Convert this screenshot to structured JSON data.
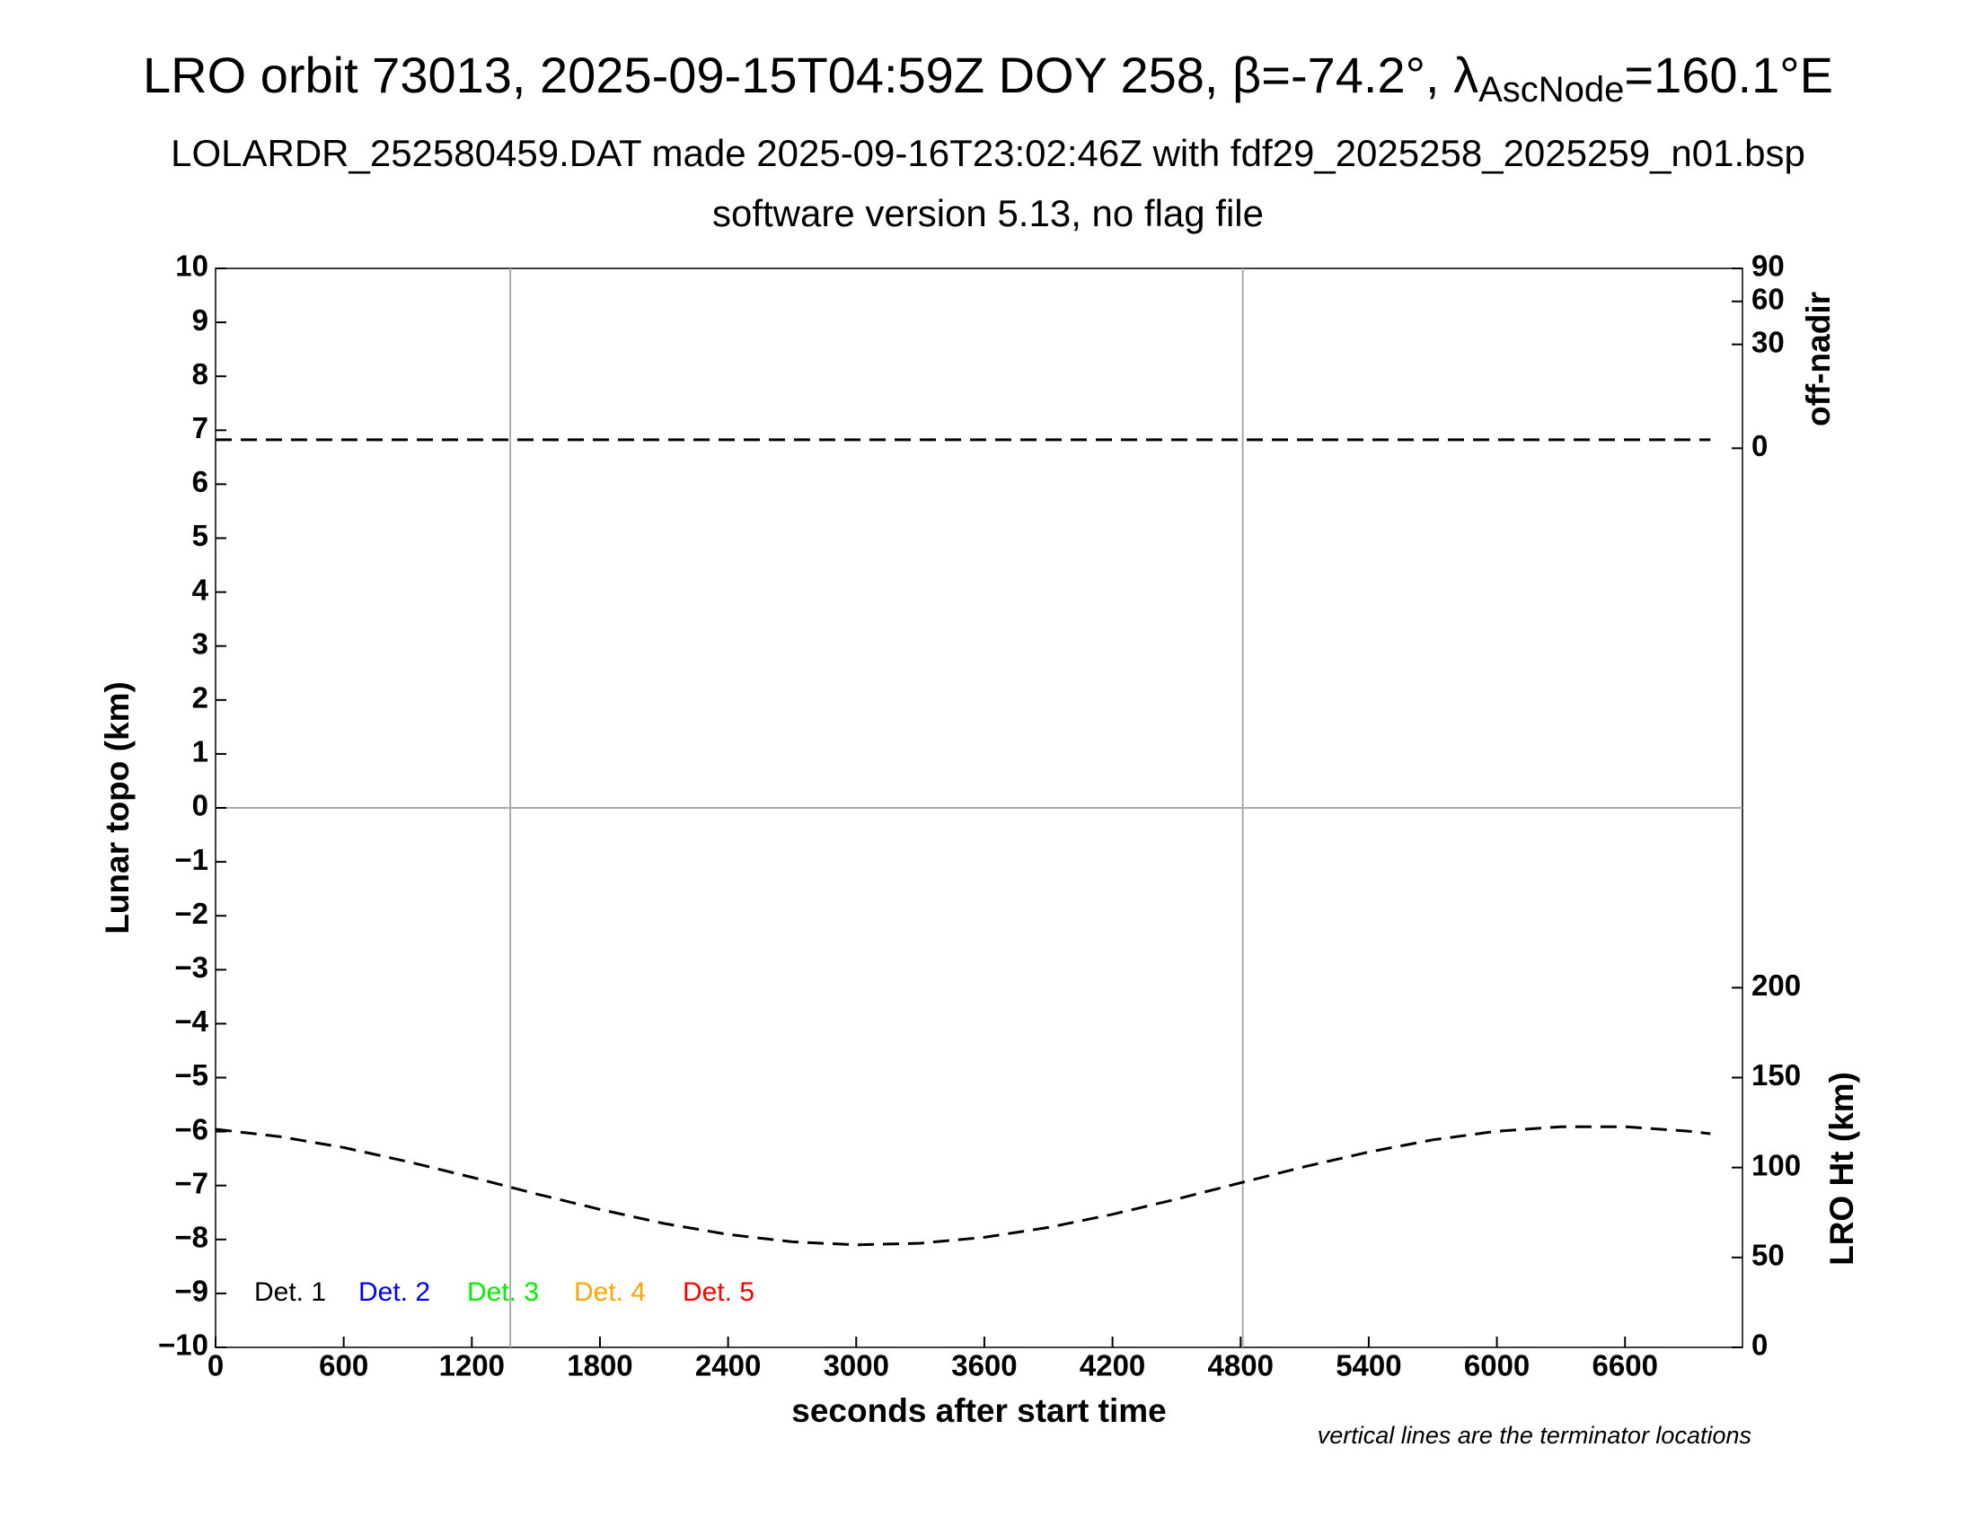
{
  "chart_data": {
    "type": "line",
    "title_parts": [
      "LRO orbit 73013, 2025-09-15T04:59Z DOY 258, β=-74.2°, λ",
      "AscNode",
      "=160.1°E"
    ],
    "subtitle": "LOLARDR_252580459.DAT made 2025-09-16T23:02:46Z with fdf29_2025258_2025259_n01.bsp",
    "subtitle2": "software version 5.13, no flag file",
    "xlabel": "seconds after start time",
    "ylabel": "Lunar topo (km)",
    "y2label": "LRO Ht (km)",
    "y3label": "off-nadir",
    "note": "vertical lines are the terminator locations",
    "xlim": [
      0,
      7150
    ],
    "xticks": [
      0,
      600,
      1200,
      1800,
      2400,
      3000,
      3600,
      4200,
      4800,
      5400,
      6000,
      6600
    ],
    "ylim": [
      -10,
      10
    ],
    "yticks": [
      {
        "value": -10,
        "label": "−10"
      },
      {
        "value": -9,
        "label": "−9"
      },
      {
        "value": -8,
        "label": "−8"
      },
      {
        "value": -7,
        "label": "−7"
      },
      {
        "value": -6,
        "label": "−6"
      },
      {
        "value": -5,
        "label": "−5"
      },
      {
        "value": -4,
        "label": "−4"
      },
      {
        "value": -3,
        "label": "−3"
      },
      {
        "value": -2,
        "label": "−2"
      },
      {
        "value": -1,
        "label": "−1"
      },
      0,
      1,
      2,
      3,
      4,
      5,
      6,
      7,
      8,
      9,
      10
    ],
    "y2lim": [
      0,
      600
    ],
    "y2ticks": [
      0,
      50,
      100,
      150,
      200
    ],
    "y3lim": [
      0,
      90
    ],
    "y3ticks": [
      0,
      30,
      60,
      90
    ],
    "y3scale": "sqrt",
    "hlines": [
      0
    ],
    "vlines": [
      1380,
      4810
    ],
    "grid_color": "#aaaaaa",
    "detectors": [
      {
        "name": "Det. 1",
        "color": "#000000"
      },
      {
        "name": "Det. 2",
        "color": "#0000ff"
      },
      {
        "name": "Det. 3",
        "color": "#00ee00"
      },
      {
        "name": "Det. 4",
        "color": "#ffa500"
      },
      {
        "name": "Det. 5",
        "color": "#ff0000"
      }
    ],
    "series": [
      {
        "name": "LRO Ht",
        "color": "#000000",
        "axis": "y2",
        "x": [
          0,
          300,
          600,
          900,
          1200,
          1500,
          1800,
          2100,
          2400,
          2700,
          3000,
          3300,
          3600,
          3900,
          4200,
          4500,
          4800,
          5100,
          5400,
          5700,
          6000,
          6300,
          6600,
          6900,
          7000
        ],
        "values": [
          121.3,
          117.2,
          111.1,
          103.3,
          94.6,
          85.4,
          76.7,
          68.9,
          62.8,
          58.7,
          57.0,
          57.9,
          61.2,
          66.7,
          74.0,
          82.4,
          91.5,
          100.5,
          108.6,
          115.4,
          120.2,
          122.7,
          122.7,
          120.2,
          118.8
        ]
      },
      {
        "name": "off-nadir",
        "color": "#000000",
        "axis": "y3",
        "x": [
          0,
          1000,
          2000,
          3000,
          4000,
          5000,
          6000,
          7000
        ],
        "values": [
          0.2,
          0.2,
          0.2,
          0.2,
          0.2,
          0.2,
          0.2,
          0.2
        ]
      }
    ]
  }
}
